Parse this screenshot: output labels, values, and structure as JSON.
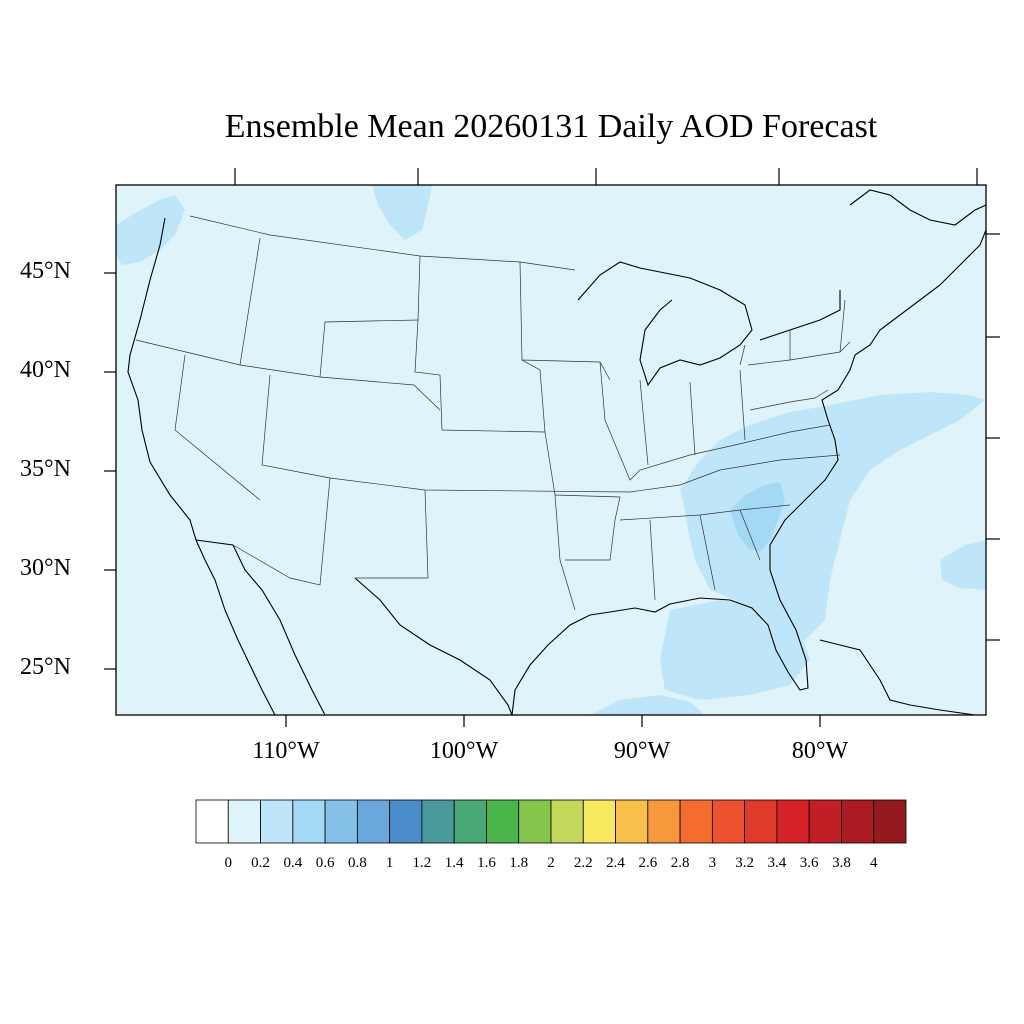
{
  "title": "Ensemble Mean 20260131 Daily AOD Forecast",
  "map": {
    "lat_ticks": [
      "45°N",
      "40°N",
      "35°N",
      "30°N",
      "25°N"
    ],
    "lon_ticks": [
      "110°W",
      "100°W",
      "90°W",
      "80°W"
    ],
    "background_color": "#dff3fb",
    "elevated_color": "#bfe6f8",
    "peak_color": "#a3d9f5"
  },
  "colorbar": {
    "labels": [
      "0",
      "0.2",
      "0.4",
      "0.6",
      "0.8",
      "1",
      "1.2",
      "1.4",
      "1.6",
      "1.8",
      "2",
      "2.2",
      "2.4",
      "2.6",
      "2.8",
      "3",
      "3.2",
      "3.4",
      "3.6",
      "3.8",
      "4"
    ],
    "colors": [
      "#ffffff",
      "#dff3fb",
      "#bfe6f8",
      "#a3d9f5",
      "#85c1e8",
      "#6aa8dc",
      "#4a8bc9",
      "#4a9a9c",
      "#4aa877",
      "#4ab54a",
      "#86c54c",
      "#c3d85a",
      "#f7e85d",
      "#f8c04a",
      "#f8983c",
      "#f46d2f",
      "#ec5230",
      "#e03b2a",
      "#d42228",
      "#c01f26",
      "#aa1b22",
      "#931a1d"
    ]
  }
}
